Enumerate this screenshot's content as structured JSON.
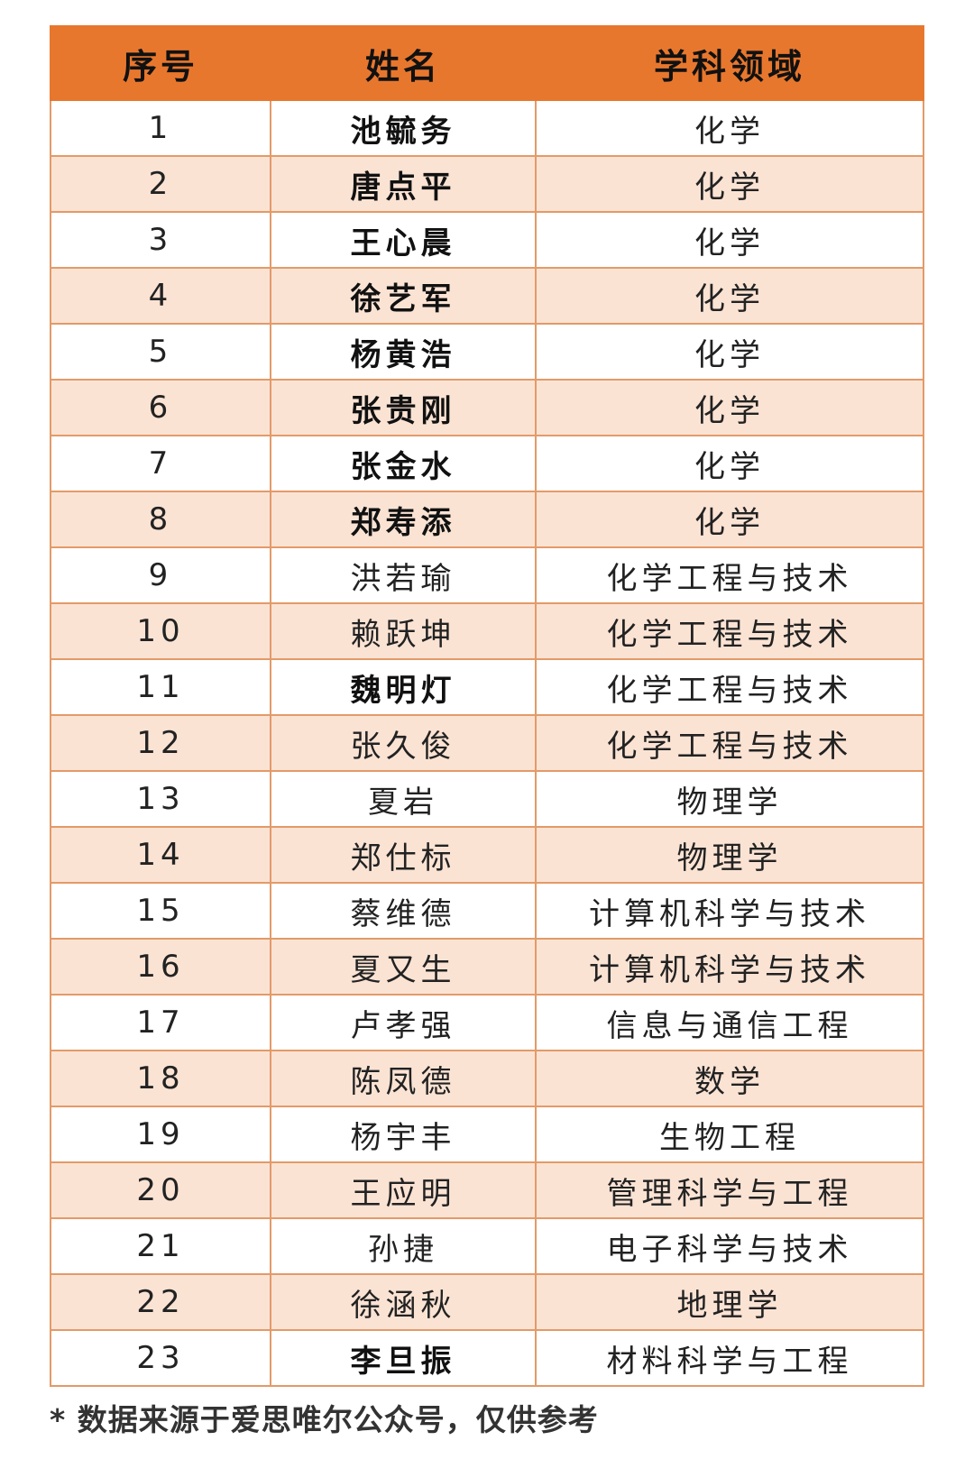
{
  "colors": {
    "header": "#E8772E",
    "alt_row": "#FBE3D4",
    "border": "#E39A68"
  },
  "headers": [
    "序号",
    "姓名",
    "学科领域"
  ],
  "rows": [
    {
      "no": "1",
      "name": "池毓务",
      "field": "化学",
      "bold": true
    },
    {
      "no": "2",
      "name": "唐点平",
      "field": "化学",
      "bold": true
    },
    {
      "no": "3",
      "name": "王心晨",
      "field": "化学",
      "bold": true
    },
    {
      "no": "4",
      "name": "徐艺军",
      "field": "化学",
      "bold": true
    },
    {
      "no": "5",
      "name": "杨黄浩",
      "field": "化学",
      "bold": true
    },
    {
      "no": "6",
      "name": "张贵刚",
      "field": "化学",
      "bold": true
    },
    {
      "no": "7",
      "name": "张金水",
      "field": "化学",
      "bold": true
    },
    {
      "no": "8",
      "name": "郑寿添",
      "field": "化学",
      "bold": true
    },
    {
      "no": "9",
      "name": "洪若瑜",
      "field": "化学工程与技术",
      "bold": false
    },
    {
      "no": "10",
      "name": "赖跃坤",
      "field": "化学工程与技术",
      "bold": false
    },
    {
      "no": "11",
      "name": "魏明灯",
      "field": "化学工程与技术",
      "bold": true
    },
    {
      "no": "12",
      "name": "张久俊",
      "field": "化学工程与技术",
      "bold": false
    },
    {
      "no": "13",
      "name": "夏岩",
      "field": "物理学",
      "bold": false
    },
    {
      "no": "14",
      "name": "郑仕标",
      "field": "物理学",
      "bold": false
    },
    {
      "no": "15",
      "name": "蔡维德",
      "field": "计算机科学与技术",
      "bold": false
    },
    {
      "no": "16",
      "name": "夏又生",
      "field": "计算机科学与技术",
      "bold": false
    },
    {
      "no": "17",
      "name": "卢孝强",
      "field": "信息与通信工程",
      "bold": false
    },
    {
      "no": "18",
      "name": "陈凤德",
      "field": "数学",
      "bold": false
    },
    {
      "no": "19",
      "name": "杨宇丰",
      "field": "生物工程",
      "bold": false
    },
    {
      "no": "20",
      "name": "王应明",
      "field": "管理科学与工程",
      "bold": false
    },
    {
      "no": "21",
      "name": "孙捷",
      "field": "电子科学与技术",
      "bold": false
    },
    {
      "no": "22",
      "name": "徐涵秋",
      "field": "地理学",
      "bold": false
    },
    {
      "no": "23",
      "name": "李旦振",
      "field": "材料科学与工程",
      "bold": true
    }
  ],
  "footnote": "* 数据来源于爱思唯尔公众号，仅供参考"
}
